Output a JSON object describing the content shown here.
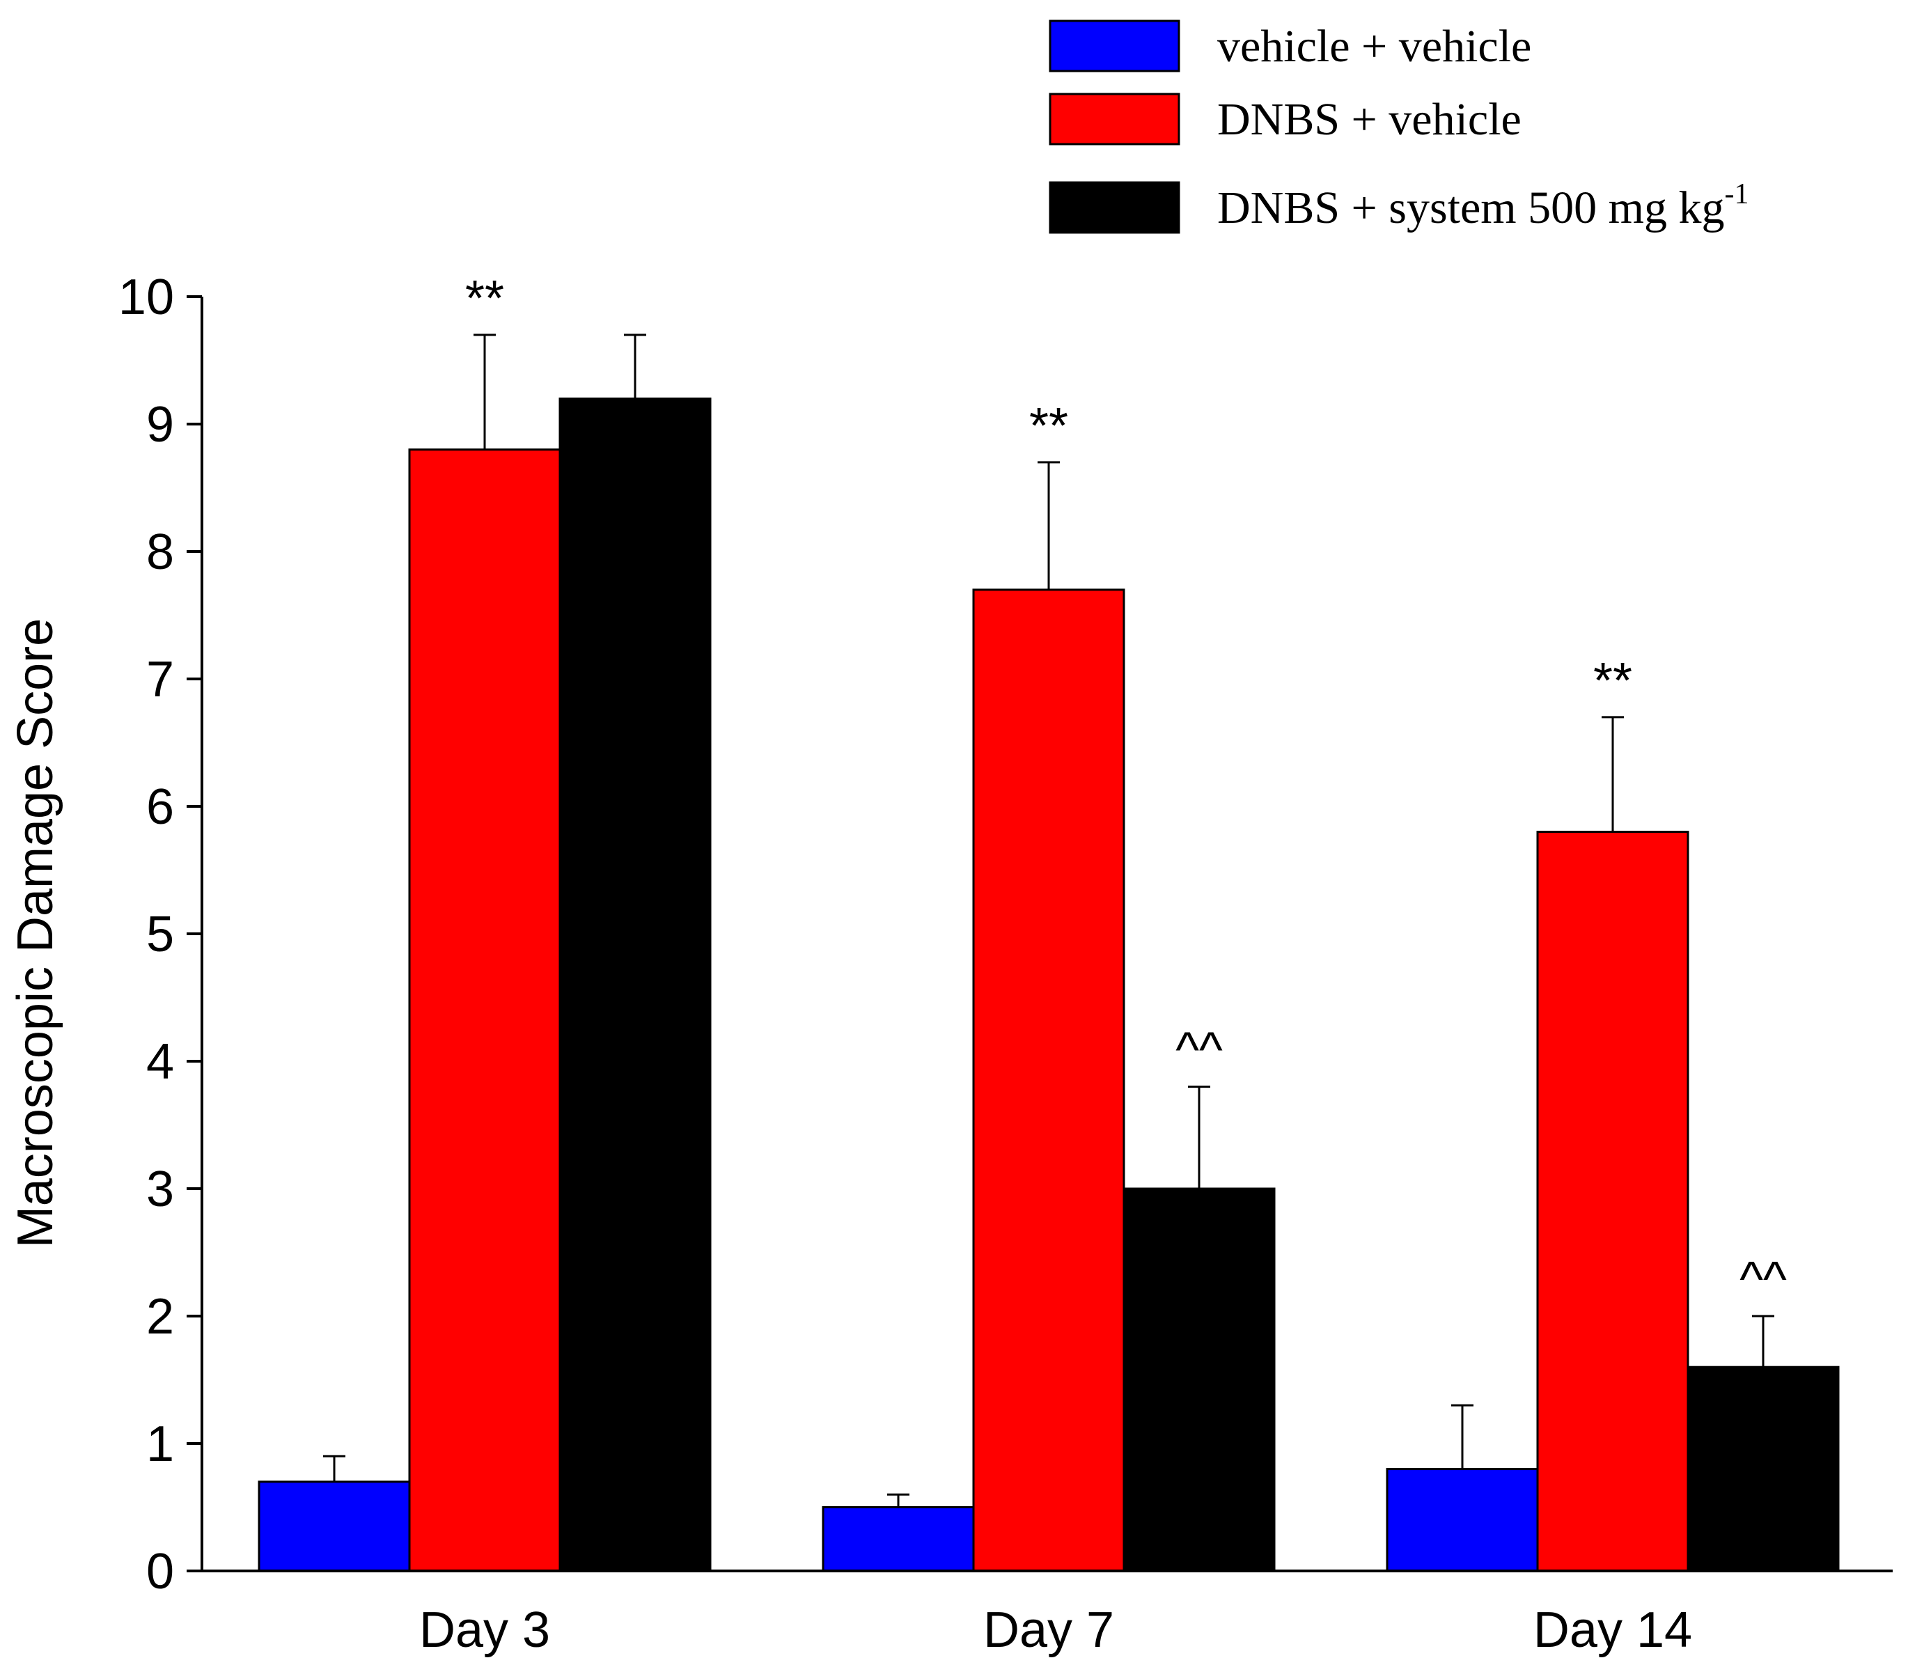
{
  "chart_data": {
    "type": "bar",
    "title": "",
    "xlabel": "",
    "ylabel": "Macroscopic Damage Score",
    "ylim": [
      0,
      10
    ],
    "yticks": [
      "0",
      "1",
      "2",
      "3",
      "4",
      "5",
      "6",
      "7",
      "8",
      "9",
      "10"
    ],
    "categories": [
      "Day 3",
      "Day 7",
      "Day 14"
    ],
    "series": [
      {
        "name": "vehicle + vehicle",
        "color": "#0000ff",
        "values": [
          0.7,
          0.5,
          0.8
        ],
        "errors": [
          0.2,
          0.1,
          0.5
        ],
        "significance": [
          "",
          "",
          ""
        ]
      },
      {
        "name": "DNBS + vehicle",
        "color": "#ff0000",
        "values": [
          8.8,
          7.7,
          5.8
        ],
        "errors": [
          0.9,
          1.0,
          0.9
        ],
        "significance": [
          "**",
          "**",
          "**"
        ]
      },
      {
        "name": "DNBS + system 500 mg kg",
        "name_superscript": "-1",
        "color": "#000000",
        "values": [
          9.2,
          3.0,
          1.6
        ],
        "errors": [
          0.5,
          0.8,
          0.4
        ],
        "significance": [
          "",
          "^^",
          "^^"
        ]
      }
    ],
    "legend_position": "top-right"
  }
}
